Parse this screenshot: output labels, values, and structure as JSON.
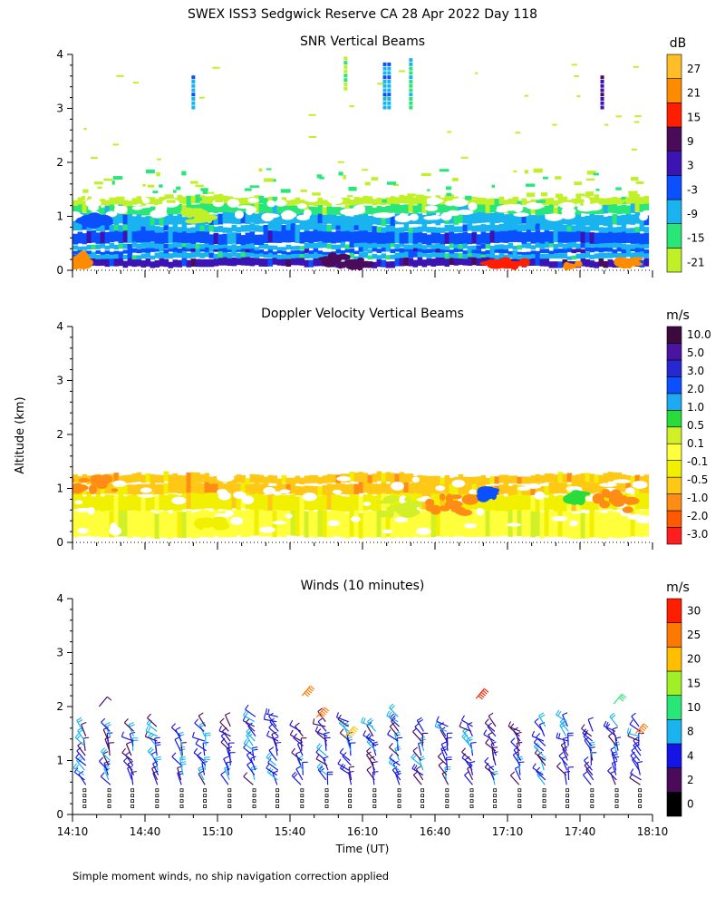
{
  "title": "SWEX ISS3 Sedgwick Reserve CA  28 Apr 2022 Day 118",
  "ylabel_shared": "Altitude (km)",
  "footnote": "Simple moment winds, no ship navigation correction applied",
  "colors": {
    "snr": [
      "#c0f028",
      "#28e678",
      "#19b4f0",
      "#0a50ff",
      "#3c14b4",
      "#4b0a5a",
      "#ff1e00",
      "#ff8c00",
      "#ffbe28"
    ],
    "vel": [
      "#ff1e1e",
      "#ff5a00",
      "#ff8c14",
      "#ffc814",
      "#f0f000",
      "#ffff3c",
      "#d2f028",
      "#28dc3c",
      "#1eaaf0",
      "#0a50ff",
      "#2828d2",
      "#4b14a0",
      "#3c0a3c"
    ],
    "wind": [
      "#000000",
      "#4b0a5a",
      "#1414e6",
      "#19b4f0",
      "#28e678",
      "#a0f028",
      "#ffbe00",
      "#ff7800",
      "#ff1e00"
    ]
  },
  "chart_data": [
    {
      "type": "heatmap",
      "title": "SNR Vertical Beams",
      "ylim": [
        0,
        4
      ],
      "yticks": [
        "0",
        "1",
        "2",
        "3",
        "4"
      ],
      "colorbar": {
        "unit": "dB",
        "labels": [
          "-21",
          "-15",
          "-9",
          "-3",
          "3",
          "9",
          "15",
          "21",
          "27"
        ]
      },
      "bands": [
        {
          "y0": 0.07,
          "y1": 0.22,
          "bin": 4
        },
        {
          "y0": 0.22,
          "y1": 0.32,
          "bin": 2
        },
        {
          "y0": 0.32,
          "y1": 0.4,
          "bin": 3
        },
        {
          "y0": 0.4,
          "y1": 0.5,
          "bin": 2
        },
        {
          "y0": 0.5,
          "y1": 0.72,
          "bin": 3
        },
        {
          "y0": 0.72,
          "y1": 0.85,
          "bin": 2
        },
        {
          "y0": 0.85,
          "y1": 1.05,
          "bin": 2
        },
        {
          "y0": 1.05,
          "y1": 1.22,
          "bin": 1
        },
        {
          "y0": 1.22,
          "y1": 1.35,
          "bin": 0
        }
      ],
      "patches": [
        {
          "x0": 14.17,
          "x1": 14.27,
          "y0": 0.07,
          "y1": 0.3,
          "bin": 7
        },
        {
          "x0": 14.22,
          "x1": 14.42,
          "y0": 0.85,
          "y1": 1.0,
          "bin": 3
        },
        {
          "x0": 17.55,
          "x1": 18.1,
          "y0": 0.07,
          "y1": 0.22,
          "bin": 7
        },
        {
          "x0": 17.0,
          "x1": 17.3,
          "y0": 0.07,
          "y1": 0.18,
          "bin": 6
        },
        {
          "x0": 15.9,
          "x1": 16.2,
          "y0": 0.07,
          "y1": 0.25,
          "bin": 5
        },
        {
          "x0": 14.95,
          "x1": 15.12,
          "y0": 0.9,
          "y1": 1.1,
          "bin": 0
        }
      ],
      "streaks": [
        {
          "x": 15.0,
          "y0": 3.05,
          "y1": 3.65,
          "bin": 2
        },
        {
          "x": 16.05,
          "y0": 3.4,
          "y1": 4.0,
          "bin": 0
        },
        {
          "x": 16.32,
          "y0": 3.05,
          "y1": 3.9,
          "bin": 2
        },
        {
          "x": 16.35,
          "y0": 3.05,
          "y1": 3.9,
          "bin": 2
        },
        {
          "x": 16.5,
          "y0": 3.05,
          "y1": 4.0,
          "bin": 1
        },
        {
          "x": 17.82,
          "y0": 3.05,
          "y1": 3.65,
          "bin": 4
        }
      ]
    },
    {
      "type": "heatmap",
      "title": "Doppler Velocity Vertical Beams",
      "ylim": [
        0,
        4
      ],
      "yticks": [
        "0",
        "1",
        "2",
        "3",
        "4"
      ],
      "colorbar": {
        "unit": "m/s",
        "labels": [
          "-3.0",
          "-2.0",
          "-1.0",
          "-0.5",
          "-0.1",
          "0.1",
          "0.5",
          "1.0",
          "2.0",
          "3.0",
          "5.0",
          "10.0"
        ]
      },
      "bands": [
        {
          "y0": 0.1,
          "y1": 0.6,
          "bin": 5
        },
        {
          "y0": 0.6,
          "y1": 0.9,
          "bin": 4
        },
        {
          "y0": 0.9,
          "y1": 1.1,
          "bin": 3
        },
        {
          "y0": 1.1,
          "y1": 1.25,
          "bin": 3
        }
      ],
      "patches": [
        {
          "x0": 14.1,
          "x1": 14.55,
          "y0": 0.95,
          "y1": 1.25,
          "bin": 2
        },
        {
          "x0": 16.6,
          "x1": 17.0,
          "y0": 0.55,
          "y1": 0.9,
          "bin": 2
        },
        {
          "x0": 17.75,
          "x1": 18.05,
          "y0": 0.6,
          "y1": 1.0,
          "bin": 2
        },
        {
          "x0": 16.3,
          "x1": 16.55,
          "y0": 0.5,
          "y1": 0.8,
          "bin": 6
        },
        {
          "x0": 17.0,
          "x1": 17.08,
          "y0": 0.8,
          "y1": 1.0,
          "bin": 9
        },
        {
          "x0": 17.6,
          "x1": 17.7,
          "y0": 0.75,
          "y1": 0.95,
          "bin": 7
        },
        {
          "x0": 15.0,
          "x1": 15.2,
          "y0": 0.3,
          "y1": 0.45,
          "bin": 4
        }
      ]
    },
    {
      "type": "scatter",
      "title": "Winds (10 minutes)",
      "ylim": [
        0,
        4
      ],
      "yticks": [
        "0",
        "1",
        "2",
        "3",
        "4"
      ],
      "xlabel": "Time (UT)",
      "xticks": [
        "14:10",
        "14:40",
        "15:10",
        "15:40",
        "16:10",
        "16:40",
        "17:10",
        "17:40",
        "18:10"
      ],
      "xlim": [
        14.1667,
        18.1667
      ],
      "colorbar": {
        "unit": "m/s",
        "labels": [
          "0",
          "2",
          "4",
          "8",
          "10",
          "15",
          "20",
          "25",
          "30"
        ]
      },
      "profile_times": [
        14.25,
        14.42,
        14.58,
        14.75,
        14.92,
        15.08,
        15.25,
        15.42,
        15.58,
        15.75,
        15.92,
        16.08,
        16.25,
        16.42,
        16.58,
        16.75,
        16.92,
        17.08,
        17.25,
        17.42,
        17.58,
        17.75,
        17.92,
        18.08
      ],
      "profile_tops": [
        1.55,
        1.6,
        1.55,
        1.65,
        1.5,
        1.7,
        1.65,
        1.85,
        1.85,
        1.6,
        1.75,
        1.8,
        1.7,
        1.85,
        1.6,
        1.65,
        1.7,
        1.65,
        1.55,
        1.7,
        1.75,
        1.6,
        1.65,
        1.65
      ],
      "upper_barbs": [
        {
          "t": 14.35,
          "alt": 2.0,
          "speed": 3
        },
        {
          "t": 15.75,
          "alt": 2.2,
          "speed": 28
        },
        {
          "t": 15.85,
          "alt": 1.8,
          "speed": 28
        },
        {
          "t": 16.05,
          "alt": 1.45,
          "speed": 24
        },
        {
          "t": 16.95,
          "alt": 2.15,
          "speed": 30
        },
        {
          "t": 17.9,
          "alt": 2.05,
          "speed": 14
        },
        {
          "t": 18.05,
          "alt": 1.5,
          "speed": 28
        }
      ]
    }
  ]
}
